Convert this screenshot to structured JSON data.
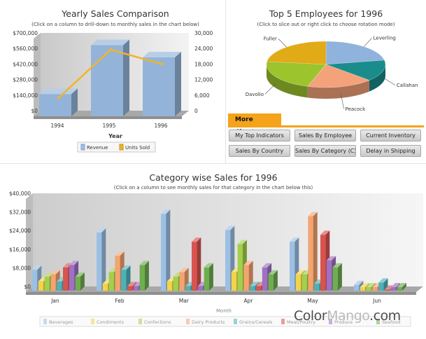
{
  "yearly": {
    "title": "Yearly Sales Comparison",
    "subtitle": "(Click on a column to drill-down to monthly sales in the chart below)",
    "xlabel": "Year",
    "left_ticks": [
      "$700,000",
      "$560,000",
      "$420,000",
      "$280,000",
      "$140,000",
      "$0"
    ],
    "right_ticks": [
      "30,000",
      "24,000",
      "18,000",
      "12,000",
      "6,000",
      "0"
    ],
    "legend": [
      "Revenue",
      "Units Sold"
    ]
  },
  "employees": {
    "title": "Top 5 Employees for 1996",
    "subtitle": "(Click to slice out or right click to choose rotation mode)"
  },
  "more_charts": {
    "tab_label": "More Charts...",
    "buttons": [
      "My Top Indicators",
      "Sales By Employee",
      "Current Inventory",
      "Sales By Country",
      "Sales By Category (C)",
      "Delay in Shipping"
    ]
  },
  "category": {
    "title": "Category wise Sales for 1996",
    "subtitle": "(Click on a column to see monthly sales for that category in the chart below this)",
    "xlabel": "Month",
    "ticks": [
      "$40,000",
      "$32,000",
      "$24,000",
      "$16,000",
      "$8,000",
      "$0"
    ]
  },
  "watermark": {
    "left": "Color",
    "mid": "Mango",
    "right": ".com"
  },
  "colors": {
    "revenue": "#8fb1d6",
    "units": "#f0b42a",
    "categories": [
      "#9cc0e4",
      "#f2d34a",
      "#a4cf4a",
      "#f4a46e",
      "#4fb1b8",
      "#d9534f",
      "#a070c2",
      "#6fae4f"
    ],
    "pie": [
      "#8fb3dc",
      "#1a8c8c",
      "#f3a27a",
      "#9cc42c",
      "#e1aa17"
    ]
  },
  "chart_data": [
    {
      "type": "bar",
      "title": "Yearly Sales Comparison",
      "xlabel": "Year",
      "categories": [
        "1994",
        "1995",
        "1996"
      ],
      "series": [
        {
          "name": "Revenue",
          "axis": "left",
          "values": [
            200000,
            640000,
            530000
          ]
        },
        {
          "name": "Units Sold",
          "axis": "right",
          "type": "line",
          "values": [
            5000,
            23500,
            18000
          ]
        }
      ],
      "ylim_left": [
        0,
        700000
      ],
      "ylim_right": [
        0,
        30000
      ]
    },
    {
      "type": "pie",
      "title": "Top 5 Employees for 1996",
      "labels": [
        "Leverling",
        "Callahan",
        "Peacock",
        "Davolio",
        "Fuller"
      ],
      "values": [
        22,
        15,
        18,
        22,
        23
      ]
    },
    {
      "type": "bar",
      "title": "Category wise Sales for 1996",
      "xlabel": "Month",
      "categories": [
        "Jan",
        "Feb",
        "Mar",
        "Apr",
        "May",
        "Jun"
      ],
      "ylim": [
        0,
        40000
      ],
      "series": [
        {
          "name": "Beverages",
          "values": [
            9000,
            25000,
            33000,
            26000,
            21000,
            2500
          ]
        },
        {
          "name": "Condiments",
          "values": [
            4000,
            3000,
            4000,
            8000,
            7000,
            1500
          ]
        },
        {
          "name": "Confections",
          "values": [
            6000,
            8000,
            6000,
            20000,
            7000,
            1500
          ]
        },
        {
          "name": "Dairy Products",
          "values": [
            7000,
            15000,
            8000,
            11000,
            32000,
            1500
          ]
        },
        {
          "name": "Grains/Cereals",
          "values": [
            4000,
            9000,
            2000,
            2000,
            3000,
            3500
          ]
        },
        {
          "name": "Meat/Poultry",
          "values": [
            10000,
            2000,
            21000,
            2000,
            24000,
            500
          ]
        },
        {
          "name": "Produce",
          "values": [
            11000,
            2000,
            2000,
            10000,
            13000,
            1500
          ]
        },
        {
          "name": "Seafood",
          "values": [
            6000,
            11000,
            10000,
            7000,
            10000,
            1500
          ]
        }
      ]
    }
  ]
}
